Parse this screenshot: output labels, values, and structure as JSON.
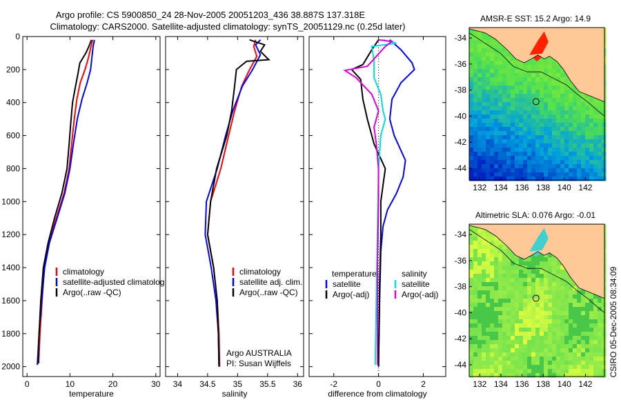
{
  "figure": {
    "title_line1": "Argo profile: CS 5900850_24 28-Nov-2005 20051203_436 38.887S 137.318E",
    "title_line2": "Climatology: CARS2000. Satellite-adjusted climatology: synTS_20051129.nc (0.25d later)",
    "credit": "CSIRO 05-Dec-2005 08:34:09"
  },
  "chart_data": [
    {
      "id": "temperature",
      "type": "line",
      "xlabel": "temperature",
      "xlim": [
        -1,
        31
      ],
      "ylim": [
        2060,
        0
      ],
      "xticks": [
        0,
        10,
        20,
        30
      ],
      "yticks": [
        0,
        200,
        400,
        600,
        800,
        1000,
        1200,
        1400,
        1600,
        1800,
        2000
      ],
      "legend": {
        "position": "lower-right",
        "entries": [
          {
            "label": "climatology",
            "color": "#ff0000"
          },
          {
            "label": "satellite-adjusted climatolog",
            "color": "#0000ff"
          },
          {
            "label": "Argo(..raw -QC)",
            "color": "#000000"
          }
        ]
      },
      "series": [
        {
          "key": "clim",
          "color": "#ff0000",
          "points": [
            [
              15.3,
              20
            ],
            [
              14.9,
              60
            ],
            [
              14.3,
              130
            ],
            [
              13.5,
              200
            ],
            [
              12.4,
              280
            ],
            [
              11.6,
              380
            ],
            [
              11.0,
              500
            ],
            [
              10.4,
              650
            ],
            [
              9.8,
              800
            ],
            [
              8.6,
              950
            ],
            [
              6.8,
              1100
            ],
            [
              5.0,
              1250
            ],
            [
              4.0,
              1400
            ],
            [
              3.5,
              1600
            ],
            [
              3.0,
              1800
            ],
            [
              2.7,
              1980
            ]
          ]
        },
        {
          "key": "sat",
          "color": "#0000ff",
          "points": [
            [
              15.7,
              20
            ],
            [
              15.4,
              60
            ],
            [
              15.1,
              130
            ],
            [
              14.8,
              200
            ],
            [
              14.0,
              280
            ],
            [
              12.8,
              380
            ],
            [
              11.7,
              500
            ],
            [
              10.8,
              650
            ],
            [
              10.0,
              800
            ],
            [
              8.8,
              950
            ],
            [
              7.0,
              1100
            ],
            [
              5.2,
              1250
            ],
            [
              4.1,
              1400
            ],
            [
              3.4,
              1600
            ],
            [
              2.8,
              1800
            ],
            [
              2.4,
              1990
            ]
          ]
        },
        {
          "key": "argo",
          "color": "#000000",
          "points": [
            [
              15.0,
              20
            ],
            [
              14.4,
              60
            ],
            [
              13.7,
              100
            ],
            [
              12.3,
              160
            ],
            [
              11.9,
              220
            ],
            [
              11.3,
              300
            ],
            [
              10.6,
              400
            ],
            [
              10.2,
              520
            ],
            [
              9.8,
              650
            ],
            [
              9.3,
              800
            ],
            [
              8.1,
              950
            ],
            [
              6.4,
              1100
            ],
            [
              4.9,
              1250
            ],
            [
              3.8,
              1400
            ],
            [
              3.2,
              1600
            ],
            [
              2.8,
              1800
            ],
            [
              2.6,
              1980
            ]
          ]
        }
      ]
    },
    {
      "id": "salinity",
      "type": "line",
      "xlabel": "salinity",
      "xlim": [
        33.8,
        36.1
      ],
      "ylim": [
        2060,
        0
      ],
      "xticks": [
        34,
        34.5,
        35,
        35.5,
        36
      ],
      "legend": {
        "position": "lower-right",
        "entries": [
          {
            "label": "climatology",
            "color": "#ff0000"
          },
          {
            "label": "satellite adj. clim.",
            "color": "#0000ff"
          },
          {
            "label": "Argo(..raw -QC)",
            "color": "#000000"
          }
        ]
      },
      "annotations": [
        "Argo AUSTRALIA",
        "PI: Susan Wijffels"
      ],
      "series": [
        {
          "key": "clim",
          "color": "#ff0000",
          "points": [
            [
              35.3,
              20
            ],
            [
              35.27,
              60
            ],
            [
              35.32,
              120
            ],
            [
              35.2,
              200
            ],
            [
              35.07,
              300
            ],
            [
              34.95,
              450
            ],
            [
              34.85,
              600
            ],
            [
              34.72,
              800
            ],
            [
              34.55,
              1000
            ],
            [
              34.5,
              1200
            ],
            [
              34.6,
              1400
            ],
            [
              34.66,
              1600
            ],
            [
              34.69,
              1800
            ],
            [
              34.7,
              2000
            ]
          ]
        },
        {
          "key": "sat",
          "color": "#0000ff",
          "points": [
            [
              35.38,
              20
            ],
            [
              35.3,
              50
            ],
            [
              35.38,
              110
            ],
            [
              35.25,
              200
            ],
            [
              35.08,
              300
            ],
            [
              34.92,
              450
            ],
            [
              34.8,
              600
            ],
            [
              34.66,
              800
            ],
            [
              34.48,
              1000
            ],
            [
              34.46,
              1200
            ],
            [
              34.56,
              1400
            ],
            [
              34.64,
              1600
            ],
            [
              34.68,
              1800
            ],
            [
              34.69,
              2000
            ]
          ]
        },
        {
          "key": "argo",
          "color": "#000000",
          "points": [
            [
              35.2,
              20
            ],
            [
              35.45,
              50
            ],
            [
              35.38,
              90
            ],
            [
              35.52,
              140
            ],
            [
              35.15,
              150
            ],
            [
              34.98,
              200
            ],
            [
              34.95,
              300
            ],
            [
              34.9,
              450
            ],
            [
              34.82,
              600
            ],
            [
              34.65,
              800
            ],
            [
              34.55,
              1000
            ],
            [
              34.5,
              1200
            ],
            [
              34.6,
              1400
            ],
            [
              34.66,
              1600
            ],
            [
              34.68,
              1800
            ],
            [
              34.69,
              2000
            ]
          ]
        }
      ]
    },
    {
      "id": "difference",
      "type": "line",
      "xlabel": "difference from climatology",
      "xlim": [
        -3.1,
        3.0
      ],
      "ylim": [
        2060,
        0
      ],
      "xticks": [
        -2,
        0,
        2
      ],
      "legend": {
        "position": "lower-left",
        "temperature_title": "temperature",
        "salinity_title": "salinity",
        "entries": [
          {
            "label": "satellite",
            "color": "#0000ff",
            "group": "temperature"
          },
          {
            "label": "Argo(-adj)",
            "color": "#000000",
            "group": "temperature"
          },
          {
            "label": "satellite",
            "color": "#00dddd",
            "group": "salinity"
          },
          {
            "label": "Argo(-adj)",
            "color": "#dd00dd",
            "group": "salinity"
          }
        ]
      },
      "series": [
        {
          "key": "temp_sat",
          "color": "#0000ff",
          "points": [
            [
              0.5,
              20
            ],
            [
              1.0,
              80
            ],
            [
              1.5,
              160
            ],
            [
              1.6,
              200
            ],
            [
              1.0,
              280
            ],
            [
              0.6,
              380
            ],
            [
              0.5,
              500
            ],
            [
              0.7,
              600
            ],
            [
              1.2,
              750
            ],
            [
              1.1,
              850
            ],
            [
              0.8,
              950
            ],
            [
              0.4,
              1050
            ],
            [
              0.2,
              1150
            ],
            [
              0.1,
              1300
            ],
            [
              0.05,
              1600
            ],
            [
              0.0,
              2000
            ]
          ]
        },
        {
          "key": "temp_argo",
          "color": "#000000",
          "points": [
            [
              0.0,
              20
            ],
            [
              -0.3,
              80
            ],
            [
              -0.7,
              170
            ],
            [
              -1.2,
              200
            ],
            [
              -0.8,
              260
            ],
            [
              -0.7,
              380
            ],
            [
              -0.5,
              500
            ],
            [
              -0.2,
              650
            ],
            [
              0.3,
              800
            ],
            [
              0.2,
              900
            ],
            [
              0.1,
              1000
            ],
            [
              0.1,
              1200
            ],
            [
              0.05,
              1500
            ],
            [
              0.0,
              2000
            ]
          ]
        },
        {
          "key": "sal_sat",
          "color": "#00dddd",
          "points": [
            [
              0.2,
              20
            ],
            [
              0.8,
              40
            ],
            [
              -0.3,
              60
            ],
            [
              -0.2,
              150
            ],
            [
              -0.2,
              250
            ],
            [
              0.1,
              350
            ],
            [
              0.2,
              450
            ],
            [
              0.3,
              500
            ],
            [
              0.1,
              600
            ],
            [
              0.0,
              800
            ],
            [
              -0.05,
              1200
            ],
            [
              -0.1,
              1600
            ],
            [
              -0.15,
              1990
            ]
          ]
        },
        {
          "key": "sal_argo",
          "color": "#dd00dd",
          "points": [
            [
              0.0,
              20
            ],
            [
              0.6,
              30
            ],
            [
              0.3,
              60
            ],
            [
              -0.5,
              180
            ],
            [
              -1.5,
              205
            ],
            [
              -1.0,
              250
            ],
            [
              -0.3,
              350
            ],
            [
              0.0,
              450
            ],
            [
              -0.2,
              550
            ],
            [
              -0.1,
              650
            ],
            [
              0.0,
              800
            ],
            [
              0.0,
              1000
            ],
            [
              -0.05,
              1400
            ],
            [
              -0.05,
              1990
            ]
          ]
        }
      ]
    }
  ],
  "maps": [
    {
      "id": "sst-map",
      "title": "AMSR-E SST: 15.2 Argo: 14.9",
      "xticks": [
        "132",
        "134",
        "136",
        "138",
        "140",
        "142"
      ],
      "yticks": [
        "-34",
        "-36",
        "-38",
        "-40",
        "-42",
        "-44"
      ],
      "marker": "Argo float location"
    },
    {
      "id": "sla-map",
      "title": "Altimetric SLA: 0.076 Argo: -0.01",
      "xticks": [
        "132",
        "134",
        "136",
        "138",
        "140",
        "142"
      ],
      "yticks": [
        "-34",
        "-36",
        "-38",
        "-40",
        "-42",
        "-44"
      ],
      "marker": "Argo float location"
    }
  ],
  "colors": {
    "land": "#ffc896",
    "sst_warm": "#ff2000",
    "sst_mid": "#ffff00",
    "sst_green": "#50e050",
    "sst_cool": "#00a0e0",
    "sst_cold": "#0020c0",
    "sla_green": "#60dd50",
    "sla_yellow": "#e0ff40",
    "sla_cyan": "#40d0d0"
  }
}
